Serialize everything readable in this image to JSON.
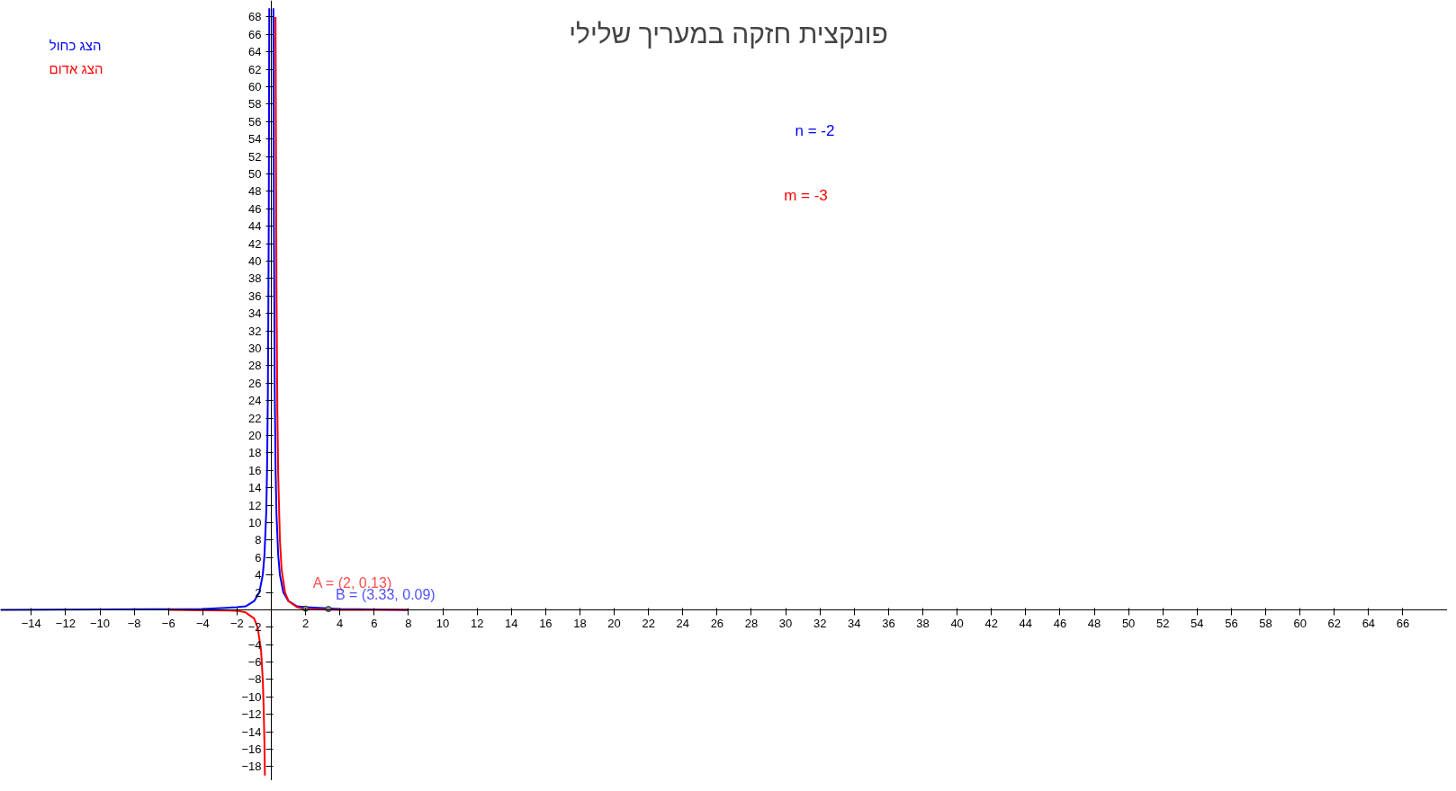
{
  "chart_data": {
    "type": "line",
    "title": "פונקצית חזקה במעריך שלילי",
    "annotations": [
      "הצג כחול",
      "הצג אדום",
      "n = -2",
      "m = -3",
      {
        "text": "A = (2, 0.13)",
        "x": 2,
        "y": 0.13
      },
      {
        "text": "B = (3.33, 0.09)",
        "x": 3.33,
        "y": 0.09
      }
    ],
    "series": [
      {
        "color": "#0000ff",
        "x": [
          -15.8,
          -4,
          -2,
          -1.5,
          -1,
          -0.7,
          -0.5,
          -0.4,
          -0.3,
          -0.25,
          -0.2,
          -0.15,
          -0.12,
          0,
          0.12,
          0.15,
          0.2,
          0.25,
          0.3,
          0.4,
          0.5,
          0.7,
          1,
          1.5,
          2,
          4,
          8
        ],
        "values": [
          0,
          0.1,
          0.3,
          0.4,
          1,
          2,
          4,
          6.3,
          11,
          16,
          25,
          44,
          69,
          null,
          69,
          44,
          25,
          16,
          11,
          6.3,
          4,
          2,
          1,
          0.4,
          0.3,
          0.1,
          0
        ]
      },
      {
        "color": "#ff0000",
        "x": [
          -6,
          -2,
          -1.5,
          -1,
          -0.8,
          -0.6,
          -0.5,
          -0.45,
          -0.4,
          -0.375,
          0,
          0.245,
          0.3,
          0.35,
          0.4,
          0.5,
          0.6,
          0.8,
          1,
          1.5,
          2,
          4,
          8
        ],
        "values": [
          0,
          -0.1,
          -0.3,
          -1,
          -2,
          -4.6,
          -8,
          -11,
          -15.6,
          -19,
          null,
          68,
          37,
          23,
          15.6,
          8,
          4.6,
          2,
          1,
          0.3,
          0.1,
          0,
          0
        ]
      }
    ],
    "xlim": [
      -15.8,
      68.6
    ],
    "ylim": [
      -19.6,
      69.9
    ],
    "xticks": [
      -14,
      -12,
      -10,
      -8,
      -6,
      -4,
      -2,
      2,
      4,
      6,
      8,
      10,
      12,
      14,
      16,
      18,
      20,
      22,
      24,
      26,
      28,
      30,
      32,
      34,
      36,
      38,
      40,
      42,
      44,
      46,
      48,
      50,
      52,
      54,
      56,
      58,
      60,
      62,
      64,
      66
    ],
    "yticks": [
      -18,
      -16,
      -14,
      -12,
      -10,
      -8,
      -6,
      -4,
      -2,
      2,
      4,
      6,
      8,
      10,
      12,
      14,
      16,
      18,
      20,
      22,
      24,
      26,
      28,
      30,
      32,
      34,
      36,
      38,
      40,
      42,
      44,
      46,
      48,
      50,
      52,
      54,
      56,
      58,
      60,
      62,
      64,
      66,
      68
    ],
    "grid": false,
    "marker": "none",
    "line_style": "solid"
  }
}
